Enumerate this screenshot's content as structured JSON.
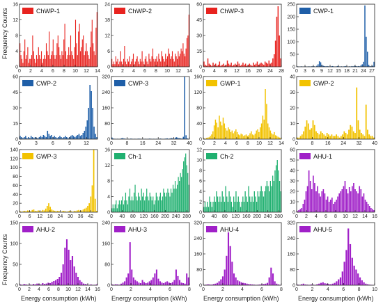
{
  "figure": {
    "ylabel": "Frequency Counts",
    "xlabel": "Energy consumption (kWh)"
  },
  "chart_data": [
    {
      "type": "bar",
      "legend": "ChWP-1",
      "color": "#e8231f",
      "xlim": [
        0,
        14
      ],
      "xticks": [
        0,
        2,
        4,
        6,
        8,
        10,
        12,
        14
      ],
      "ylim": [
        0,
        16
      ],
      "yticks": [
        0,
        4,
        8,
        12,
        16
      ],
      "values": [
        6,
        3,
        2,
        1,
        4,
        7,
        2,
        3,
        5,
        1,
        2,
        2,
        3,
        8,
        4,
        2,
        1,
        3,
        2,
        5,
        3,
        2,
        4,
        1,
        2,
        3,
        2,
        6,
        4,
        3,
        9,
        2,
        3,
        4,
        7,
        3,
        2,
        3,
        6,
        8,
        5,
        3,
        2,
        4,
        3,
        7,
        11,
        4,
        2,
        3,
        5,
        3,
        8,
        4,
        3,
        2,
        5,
        12,
        6,
        3,
        9,
        11,
        4,
        5,
        7,
        8,
        3,
        4,
        6,
        4,
        3,
        2,
        5,
        9,
        12,
        6,
        4,
        3,
        10,
        14
      ]
    },
    {
      "type": "bar",
      "legend": "ChWP-2",
      "color": "#e8231f",
      "xlim": [
        0,
        14
      ],
      "xticks": [
        0,
        2,
        4,
        6,
        8,
        10,
        12,
        14
      ],
      "ylim": [
        0,
        24
      ],
      "yticks": [
        0,
        6,
        12,
        18,
        24
      ],
      "values": [
        3,
        1,
        2,
        1,
        4,
        2,
        3,
        1,
        2,
        6,
        2,
        1,
        3,
        8,
        2,
        1,
        3,
        2,
        4,
        1,
        2,
        3,
        5,
        1,
        2,
        3,
        4,
        2,
        1,
        3,
        2,
        6,
        2,
        1,
        3,
        4,
        2,
        1,
        5,
        3,
        2,
        4,
        7,
        3,
        2,
        3,
        4,
        2,
        5,
        3,
        2,
        6,
        4,
        3,
        2,
        5,
        3,
        4,
        7,
        5,
        3,
        4,
        6,
        3,
        2,
        5,
        4,
        3,
        6,
        4,
        5,
        7,
        6,
        9,
        5,
        4,
        7,
        11,
        12,
        20
      ]
    },
    {
      "type": "bar",
      "legend": "ChWP-3",
      "color": "#e8231f",
      "xlim": [
        0,
        28
      ],
      "xticks": [
        0,
        4,
        8,
        12,
        16,
        20,
        24,
        28
      ],
      "ylim": [
        0,
        60
      ],
      "yticks": [
        0,
        15,
        30,
        45,
        60
      ],
      "values": [
        5,
        2,
        1,
        8,
        3,
        2,
        1,
        4,
        2,
        3,
        1,
        2,
        5,
        1,
        2,
        3,
        1,
        2,
        6,
        3,
        2,
        4,
        1,
        2,
        3,
        2,
        5,
        3,
        1,
        2,
        4,
        2,
        3,
        1,
        2,
        3,
        2,
        1,
        4,
        2,
        3,
        5,
        2,
        3,
        4,
        3,
        2,
        5,
        4,
        3,
        6,
        3,
        4,
        8,
        12,
        25,
        48,
        58,
        30,
        8
      ]
    },
    {
      "type": "bar",
      "legend": "CWP-1",
      "color": "#1f5fa8",
      "xlim": [
        0,
        28
      ],
      "xticks": [
        0,
        3,
        6,
        9,
        12,
        15,
        18,
        21,
        24,
        27
      ],
      "ylim": [
        0,
        250
      ],
      "yticks": [
        0,
        50,
        100,
        150,
        200,
        250
      ],
      "values": [
        2,
        1,
        1,
        2,
        1,
        1,
        2,
        1,
        1,
        2,
        1,
        2,
        3,
        2,
        1,
        4,
        10,
        22,
        18,
        8,
        4,
        3,
        2,
        3,
        2,
        1,
        2,
        3,
        2,
        1,
        2,
        3,
        2,
        1,
        2,
        1,
        2,
        3,
        2,
        1,
        2,
        1,
        3,
        2,
        4,
        3,
        2,
        3,
        2,
        6,
        10,
        20,
        245,
        120,
        60,
        8,
        3,
        2,
        4,
        20
      ]
    },
    {
      "type": "bar",
      "legend": "CWP-2",
      "color": "#1f5fa8",
      "xlim": [
        0,
        14
      ],
      "xticks": [
        0,
        3,
        6,
        9,
        12
      ],
      "ylim": [
        0,
        60
      ],
      "yticks": [
        0,
        15,
        30,
        45,
        60
      ],
      "values": [
        3,
        2,
        1,
        2,
        3,
        1,
        2,
        1,
        3,
        2,
        1,
        2,
        1,
        1,
        2,
        3,
        2,
        4,
        3,
        2,
        8,
        5,
        3,
        4,
        2,
        3,
        2,
        1,
        2,
        3,
        2,
        1,
        2,
        3,
        2,
        1,
        2,
        3,
        4,
        3,
        2,
        3,
        4,
        5,
        3,
        4,
        6,
        8,
        12,
        18,
        30,
        52,
        46,
        30,
        12,
        5,
        2
      ]
    },
    {
      "type": "bar",
      "legend": "CWP-3",
      "color": "#1f5fa8",
      "xlim": [
        0,
        40
      ],
      "xticks": [
        0,
        8,
        16,
        24,
        32,
        40
      ],
      "ylim": [
        0,
        320
      ],
      "yticks": [
        0,
        80,
        160,
        240,
        320
      ],
      "values": [
        8,
        3,
        2,
        1,
        2,
        1,
        2,
        4,
        6,
        3,
        2,
        1,
        2,
        1,
        3,
        2,
        1,
        2,
        1,
        2,
        3,
        2,
        1,
        2,
        1,
        2,
        1,
        2,
        3,
        2,
        1,
        2,
        1,
        2,
        1,
        2,
        3,
        2,
        1,
        2,
        3,
        4,
        2,
        3,
        6,
        4,
        2,
        8,
        10,
        7,
        5,
        4,
        3,
        12,
        318,
        20,
        4,
        2
      ]
    },
    {
      "type": "bar",
      "legend": "GWP-1",
      "color": "#f2c200",
      "xlim": [
        0,
        14
      ],
      "xticks": [
        0,
        2,
        4,
        6,
        8,
        10,
        12,
        14
      ],
      "ylim": [
        0,
        160
      ],
      "yticks": [
        0,
        40,
        80,
        120,
        160
      ],
      "values": [
        2,
        1,
        3,
        4,
        5,
        8,
        12,
        20,
        35,
        50,
        42,
        30,
        60,
        45,
        35,
        55,
        40,
        28,
        22,
        30,
        25,
        18,
        22,
        15,
        20,
        25,
        18,
        12,
        10,
        14,
        12,
        8,
        10,
        12,
        8,
        10,
        15,
        20,
        12,
        10,
        14,
        22,
        25,
        18,
        30,
        40,
        60,
        50,
        128,
        90,
        40,
        30,
        22,
        15,
        12,
        18,
        10,
        8,
        6,
        4,
        3
      ]
    },
    {
      "type": "bar",
      "legend": "GWP-2",
      "color": "#f2c200",
      "xlim": [
        0,
        40
      ],
      "xticks": [
        0,
        8,
        16,
        24,
        32,
        40
      ],
      "ylim": [
        0,
        40
      ],
      "yticks": [
        0,
        10,
        20,
        30,
        40
      ],
      "values": [
        1,
        1,
        2,
        3,
        5,
        8,
        12,
        10,
        6,
        7,
        12,
        9,
        5,
        4,
        3,
        5,
        4,
        3,
        2,
        4,
        3,
        2,
        3,
        2,
        2,
        3,
        2,
        1,
        2,
        3,
        5,
        4,
        3,
        6,
        9,
        8,
        5,
        4,
        33,
        12,
        6,
        4,
        3,
        2,
        22,
        6,
        3,
        2,
        2,
        1
      ]
    },
    {
      "type": "bar",
      "legend": "GWP-3",
      "color": "#f2c200",
      "xlim": [
        0,
        46
      ],
      "xticks": [
        0,
        6,
        12,
        18,
        24,
        30,
        36,
        42
      ],
      "ylim": [
        0,
        140
      ],
      "yticks": [
        0,
        20,
        40,
        60,
        80,
        100,
        120,
        140
      ],
      "values": [
        2,
        1,
        2,
        3,
        2,
        4,
        3,
        2,
        5,
        6,
        3,
        2,
        4,
        3,
        2,
        5,
        4,
        8,
        14,
        20,
        12,
        6,
        4,
        3,
        2,
        3,
        2,
        1,
        2,
        3,
        2,
        1,
        2,
        3,
        2,
        1,
        3,
        2,
        4,
        5,
        3,
        4,
        6,
        8,
        10,
        14,
        20,
        35,
        60,
        145,
        30,
        3
      ]
    },
    {
      "type": "bar",
      "legend": "Ch-1",
      "color": "#20b070",
      "xlim": [
        0,
        290
      ],
      "xticks": [
        0,
        40,
        80,
        120,
        160,
        200,
        240,
        280
      ],
      "ylim": [
        0,
        16
      ],
      "yticks": [
        0,
        4,
        8,
        12,
        16
      ],
      "values": [
        1,
        2,
        1,
        2,
        3,
        1,
        2,
        3,
        2,
        3,
        4,
        2,
        3,
        5,
        3,
        2,
        4,
        6,
        3,
        4,
        3,
        5,
        7,
        4,
        3,
        5,
        4,
        3,
        6,
        4,
        5,
        3,
        4,
        6,
        4,
        3,
        5,
        4,
        3,
        4,
        2,
        3,
        5,
        4,
        3,
        4,
        5,
        3,
        4,
        6,
        5,
        4,
        5,
        6,
        5,
        4,
        6,
        5,
        7,
        6,
        8,
        6,
        7,
        9,
        8,
        10,
        9,
        11,
        13,
        14,
        15,
        12,
        10,
        7
      ]
    },
    {
      "type": "bar",
      "legend": "Ch-2",
      "color": "#20b070",
      "xlim": [
        0,
        290
      ],
      "xticks": [
        0,
        40,
        80,
        120,
        160,
        200,
        240,
        280
      ],
      "ylim": [
        0,
        12
      ],
      "yticks": [
        0,
        2,
        4,
        6,
        8,
        10,
        12
      ],
      "values": [
        1,
        2,
        1,
        2,
        1,
        3,
        2,
        1,
        2,
        3,
        2,
        4,
        3,
        2,
        3,
        2,
        4,
        3,
        2,
        5,
        3,
        2,
        4,
        3,
        2,
        1,
        3,
        2,
        4,
        2,
        3,
        2,
        1,
        2,
        3,
        2,
        4,
        3,
        2,
        5,
        3,
        2,
        3,
        2,
        4,
        3,
        2,
        4,
        3,
        4,
        5,
        4,
        3,
        4,
        5,
        6,
        5,
        4,
        6,
        5,
        7,
        6,
        8,
        9,
        10,
        8,
        6,
        4
      ]
    },
    {
      "type": "bar",
      "legend": "AHU-1",
      "color": "#a020c8",
      "xlim": [
        0,
        16
      ],
      "xticks": [
        0,
        2,
        4,
        6,
        8,
        10,
        12,
        14,
        16
      ],
      "ylim": [
        0,
        60
      ],
      "yticks": [
        0,
        10,
        20,
        30,
        40,
        50,
        60
      ],
      "values": [
        1,
        2,
        3,
        4,
        8,
        12,
        20,
        25,
        40,
        30,
        22,
        35,
        28,
        20,
        25,
        18,
        15,
        20,
        22,
        18,
        12,
        15,
        10,
        12,
        14,
        8,
        10,
        12,
        15,
        18,
        20,
        22,
        25,
        30,
        22,
        18,
        24,
        20,
        25,
        28,
        22,
        20,
        18,
        25,
        22,
        15,
        18,
        12,
        10,
        8,
        6,
        4,
        3,
        2
      ]
    },
    {
      "type": "bar",
      "legend": "AHU-2",
      "color": "#a020c8",
      "xlim": [
        0,
        16
      ],
      "xticks": [
        0,
        2,
        4,
        6,
        8,
        10,
        12,
        14,
        16
      ],
      "ylim": [
        0,
        150
      ],
      "yticks": [
        0,
        50,
        100,
        150
      ],
      "values": [
        2,
        1,
        3,
        2,
        1,
        2,
        1,
        3,
        2,
        4,
        3,
        2,
        5,
        3,
        4,
        6,
        5,
        8,
        10,
        12,
        15,
        20,
        30,
        50,
        90,
        110,
        85,
        60,
        70,
        45,
        30,
        20,
        12,
        8,
        4,
        3,
        2,
        1,
        2,
        1,
        1,
        2
      ]
    },
    {
      "type": "bar",
      "legend": "AHU-3",
      "color": "#a020c8",
      "xlim": [
        0,
        8
      ],
      "xticks": [
        0,
        2,
        4,
        6,
        8
      ],
      "ylim": [
        0,
        240
      ],
      "yticks": [
        0,
        80,
        160,
        240
      ],
      "values": [
        3,
        2,
        4,
        3,
        2,
        6,
        10,
        15,
        30,
        45,
        165,
        60,
        30,
        20,
        15,
        10,
        8,
        20,
        12,
        8,
        10,
        15,
        20,
        30,
        45,
        60,
        25,
        15,
        10,
        8,
        12,
        15,
        10,
        8,
        12,
        20,
        60,
        35,
        20,
        10,
        8,
        6,
        45,
        30
      ]
    },
    {
      "type": "bar",
      "legend": "AHU-4",
      "color": "#a020c8",
      "xlim": [
        0,
        8
      ],
      "xticks": [
        0,
        2,
        4,
        6,
        8
      ],
      "ylim": [
        0,
        320
      ],
      "yticks": [
        0,
        80,
        160,
        240,
        320
      ],
      "values": [
        2,
        3,
        5,
        4,
        3,
        6,
        8,
        12,
        20,
        30,
        45,
        80,
        150,
        270,
        200,
        120,
        60,
        40,
        25,
        20,
        15,
        12,
        10,
        8,
        6,
        5,
        4,
        3,
        2,
        3,
        4,
        5,
        6,
        8,
        12,
        40,
        90,
        60,
        20,
        8,
        4,
        2
      ]
    },
    {
      "type": "bar",
      "legend": "AHU-5",
      "color": "#a020c8",
      "xlim": [
        0,
        10
      ],
      "xticks": [
        0,
        2,
        4,
        6,
        8,
        10
      ],
      "ylim": [
        0,
        320
      ],
      "yticks": [
        0,
        80,
        160,
        240,
        320
      ],
      "values": [
        3,
        2,
        5,
        8,
        4,
        3,
        2,
        4,
        3,
        2,
        5,
        8,
        12,
        15,
        10,
        8,
        6,
        5,
        8,
        12,
        20,
        30,
        40,
        70,
        120,
        180,
        290,
        210,
        140,
        100,
        80,
        60,
        40,
        25,
        15,
        8,
        5,
        3,
        2,
        1
      ]
    }
  ]
}
